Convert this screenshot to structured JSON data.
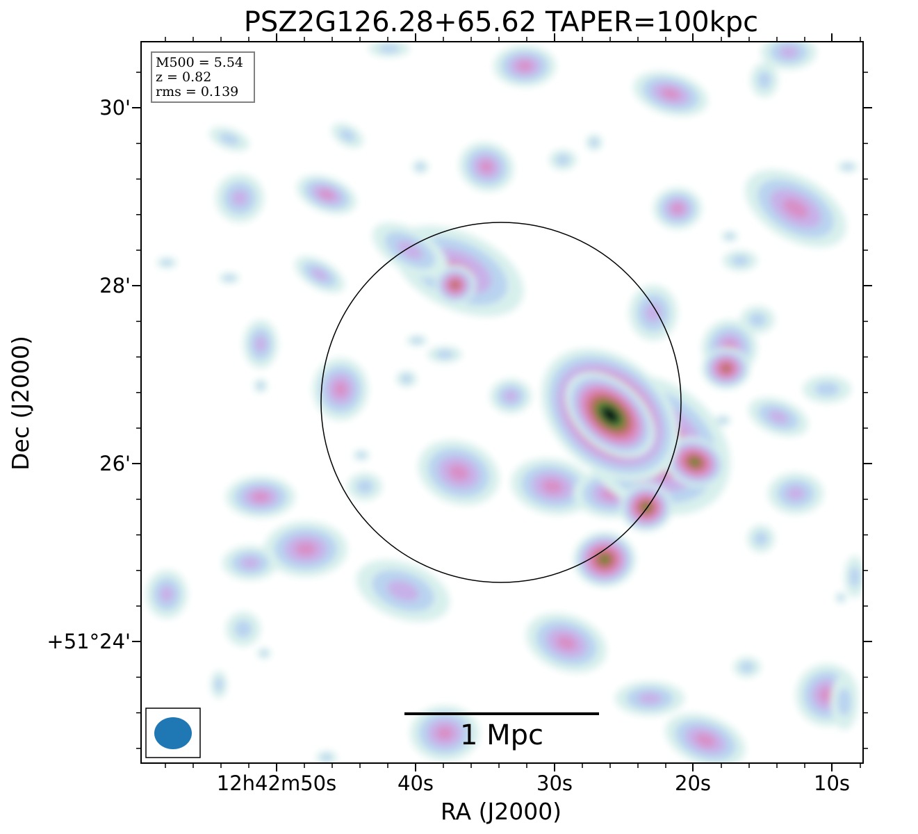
{
  "title": "PSZ2G126.28+65.62 TAPER=100kpc",
  "axes": {
    "xlabel": "RA (J2000)",
    "ylabel": "Dec (J2000)",
    "x_ticks": [
      "12h42m50s",
      "40s",
      "30s",
      "20s",
      "10s"
    ],
    "y_ticks": [
      "30'",
      "28'",
      "26'",
      "+51°24'"
    ]
  },
  "info": {
    "mass": "M500 = 5.54",
    "redshift": "z = 0.82",
    "rms": "rms = 0.139"
  },
  "scale_bar": {
    "label": "1 Mpc"
  },
  "colors": {
    "frame": "#000000",
    "beam": "#1f77b4",
    "info_border": "#808080",
    "colormap": [
      "#ffffff",
      "#d8f0ec",
      "#b9d3f0",
      "#c8b0e8",
      "#d890c8",
      "#d87898",
      "#b07050",
      "#5a8a38",
      "#1e3a2a",
      "#000000"
    ]
  }
}
